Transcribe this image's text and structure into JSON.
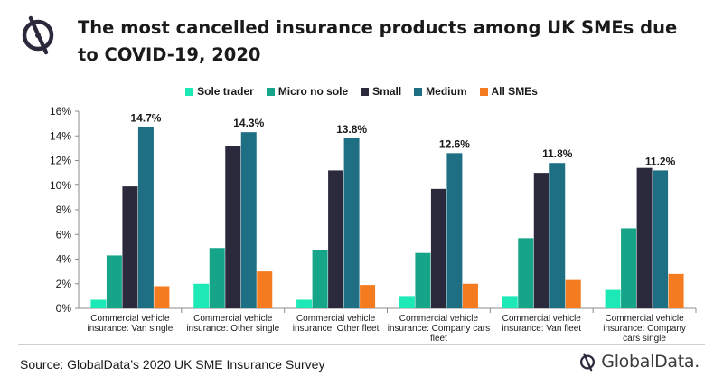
{
  "header": {
    "title": "The most cancelled insurance products among UK SMEs due to COVID-19, 2020"
  },
  "footer": {
    "source": "Source: GlobalData’s 2020 UK SME Insurance Survey",
    "brand": "GlobalData."
  },
  "colors": {
    "sole_trader": "#1de9b6",
    "micro_no_sole": "#17a589",
    "small": "#2b2a3d",
    "medium": "#1f6f84",
    "all_smes": "#f47b20",
    "brand_mark": "#2b2a3d"
  },
  "chart_data": {
    "type": "bar",
    "title": "The most cancelled insurance products among UK SMEs due to COVID-19, 2020",
    "categories": [
      [
        "Commercial vehicle",
        "insurance: Van single"
      ],
      [
        "Commercial vehicle",
        "insurance: Other single"
      ],
      [
        "Commercial vehicle",
        "insurance: Other fleet"
      ],
      [
        "Commercial vehicle",
        "insurance: Company cars",
        "fleet"
      ],
      [
        "Commercial vehicle",
        "insurance: Van fleet"
      ],
      [
        "Commercial vehicle",
        "insurance: Company",
        "cars single"
      ]
    ],
    "series": [
      {
        "name": "Sole trader",
        "color": "#1de9b6",
        "values": [
          0.7,
          2.0,
          0.7,
          1.0,
          1.0,
          1.5
        ]
      },
      {
        "name": "Micro no sole",
        "color": "#17a589",
        "values": [
          4.3,
          4.9,
          4.7,
          4.5,
          5.7,
          6.5
        ]
      },
      {
        "name": "Small",
        "color": "#2b2a3d",
        "values": [
          9.9,
          13.2,
          11.2,
          9.7,
          11.0,
          11.4
        ]
      },
      {
        "name": "Medium",
        "color": "#1f6f84",
        "values": [
          14.7,
          14.3,
          13.8,
          12.6,
          11.8,
          11.2
        ]
      },
      {
        "name": "All SMEs",
        "color": "#f47b20",
        "values": [
          1.8,
          3.0,
          1.9,
          2.0,
          2.3,
          2.8
        ]
      }
    ],
    "data_labels": [
      "14.7%",
      "14.3%",
      "13.8%",
      "12.6%",
      "11.8%",
      "11.2%"
    ],
    "y_ticks": [
      "0%",
      "2%",
      "4%",
      "6%",
      "8%",
      "10%",
      "12%",
      "14%",
      "16%"
    ],
    "ylim": [
      0,
      16
    ],
    "legend_position": "top",
    "grid": false
  }
}
